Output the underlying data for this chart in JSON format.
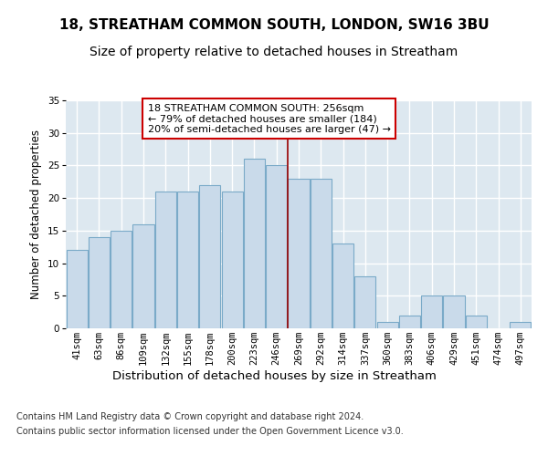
{
  "title": "18, STREATHAM COMMON SOUTH, LONDON, SW16 3BU",
  "subtitle": "Size of property relative to detached houses in Streatham",
  "xlabel": "Distribution of detached houses by size in Streatham",
  "ylabel": "Number of detached properties",
  "categories": [
    "41sqm",
    "63sqm",
    "86sqm",
    "109sqm",
    "132sqm",
    "155sqm",
    "178sqm",
    "200sqm",
    "223sqm",
    "246sqm",
    "269sqm",
    "292sqm",
    "314sqm",
    "337sqm",
    "360sqm",
    "383sqm",
    "406sqm",
    "429sqm",
    "451sqm",
    "474sqm",
    "497sqm"
  ],
  "values": [
    12,
    14,
    15,
    16,
    21,
    21,
    22,
    21,
    26,
    25,
    23,
    23,
    13,
    8,
    1,
    2,
    5,
    5,
    2,
    0,
    1
  ],
  "bar_color": "#c9daea",
  "bar_edge_color": "#7aaac8",
  "background_color": "#dde8f0",
  "grid_color": "#ffffff",
  "vline_x": 9.5,
  "vline_color": "#990000",
  "annotation_text": "18 STREATHAM COMMON SOUTH: 256sqm\n← 79% of detached houses are smaller (184)\n20% of semi-detached houses are larger (47) →",
  "annotation_box_color": "#ffffff",
  "annotation_box_edge": "#cc0000",
  "footer_line1": "Contains HM Land Registry data © Crown copyright and database right 2024.",
  "footer_line2": "Contains public sector information licensed under the Open Government Licence v3.0.",
  "ylim": [
    0,
    35
  ],
  "title_fontsize": 11,
  "subtitle_fontsize": 10,
  "ylabel_fontsize": 8.5,
  "xlabel_fontsize": 9.5,
  "tick_fontsize": 7.5,
  "annotation_fontsize": 8,
  "footer_fontsize": 7
}
